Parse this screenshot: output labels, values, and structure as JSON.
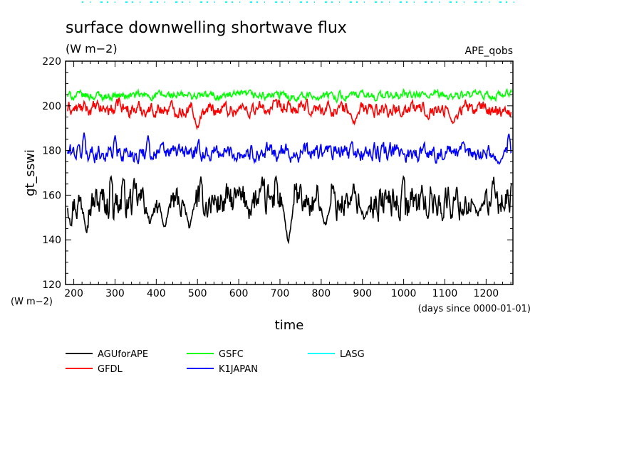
{
  "chart_data": {
    "type": "line",
    "title": "surface downwelling shortwave flux",
    "subtitle": "(W m−2)",
    "dataset_label": "APE_qobs",
    "xlabel": "time",
    "x_units": "(days since 0000-01-01)",
    "ylabel": "gt_sswi",
    "y_units": "(W m−2)",
    "xlim": [
      180,
      1265
    ],
    "ylim": [
      120,
      220
    ],
    "x_ticks": [
      200,
      300,
      400,
      500,
      600,
      700,
      800,
      900,
      1000,
      1100,
      1200
    ],
    "y_ticks": [
      120,
      140,
      160,
      180,
      200,
      220
    ],
    "grid": false,
    "legend_position": "bottom",
    "series": [
      {
        "name": "AGUforAPE",
        "color": "#000000",
        "mean": 157,
        "amp": 6,
        "dips": [
          [
            385,
            147
          ],
          [
            420,
            145
          ],
          [
            480,
            145
          ],
          [
            720,
            138
          ],
          [
            810,
            146
          ],
          [
            905,
            149
          ],
          [
            1180,
            151
          ]
        ],
        "peaks": [
          [
            290,
            169
          ],
          [
            320,
            168
          ],
          [
            690,
            169
          ],
          [
            1000,
            169
          ]
        ]
      },
      {
        "name": "GFDL",
        "color": "#ff0000",
        "mean": 198.5,
        "amp": 2.5,
        "dips": [
          [
            500,
            190
          ],
          [
            880,
            192
          ],
          [
            1120,
            192
          ]
        ],
        "peaks": [
          [
            310,
            204
          ],
          [
            1150,
            203
          ]
        ]
      },
      {
        "name": "GSFC",
        "color": "#00ff00",
        "mean": 204.5,
        "amp": 1.5,
        "dips": [],
        "peaks": [
          [
            1000,
            208
          ],
          [
            1250,
            208
          ]
        ]
      },
      {
        "name": "K1JAPAN",
        "color": "#0000ff",
        "mean": 179,
        "amp": 3,
        "dips": [
          [
            1230,
            174
          ]
        ],
        "peaks": [
          [
            225,
            188
          ],
          [
            300,
            187
          ],
          [
            380,
            187
          ],
          [
            1255,
            188
          ]
        ]
      },
      {
        "name": "LASG",
        "color": "#00ffff",
        "values": []
      }
    ]
  }
}
